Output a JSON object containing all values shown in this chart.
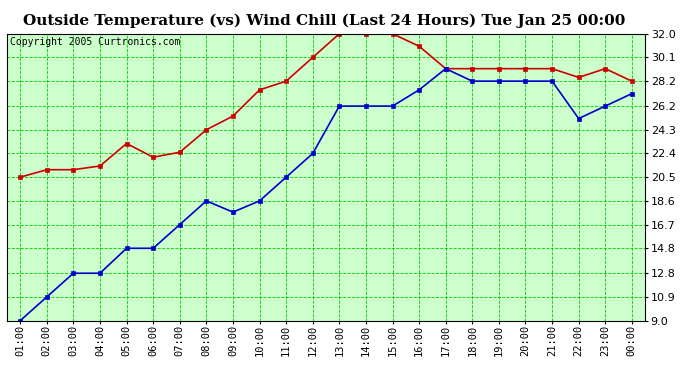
{
  "title": "Outside Temperature (vs) Wind Chill (Last 24 Hours) Tue Jan 25 00:00",
  "copyright": "Copyright 2005 Curtronics.com",
  "x_labels": [
    "01:00",
    "02:00",
    "03:00",
    "04:00",
    "05:00",
    "06:00",
    "07:00",
    "08:00",
    "09:00",
    "10:00",
    "11:00",
    "12:00",
    "13:00",
    "14:00",
    "15:00",
    "16:00",
    "17:00",
    "18:00",
    "19:00",
    "20:00",
    "21:00",
    "22:00",
    "23:00",
    "00:00"
  ],
  "y_ticks": [
    9.0,
    10.9,
    12.8,
    14.8,
    16.7,
    18.6,
    20.5,
    22.4,
    24.3,
    26.2,
    28.2,
    30.1,
    32.0
  ],
  "y_min": 9.0,
  "y_max": 32.0,
  "red_data": [
    20.5,
    21.1,
    21.1,
    21.4,
    23.2,
    22.1,
    22.5,
    24.3,
    25.4,
    27.5,
    28.2,
    30.1,
    32.0,
    32.0,
    32.0,
    31.0,
    29.2,
    29.2,
    29.2,
    29.2,
    29.2,
    28.5,
    29.2,
    28.2
  ],
  "blue_data": [
    9.0,
    10.9,
    12.8,
    12.8,
    14.8,
    14.8,
    16.7,
    18.6,
    17.7,
    18.6,
    20.5,
    22.4,
    26.2,
    26.2,
    26.2,
    27.5,
    29.2,
    28.2,
    28.2,
    28.2,
    28.2,
    25.2,
    26.2,
    27.2
  ],
  "red_color": "#cc0000",
  "blue_color": "#0000cc",
  "plot_bg": "#ccffcc",
  "outer_bg": "#ffffff",
  "grid_color": "#00cc00",
  "title_fontsize": 11,
  "copyright_fontsize": 7,
  "tick_fontsize": 7.5,
  "ytick_fontsize": 8
}
